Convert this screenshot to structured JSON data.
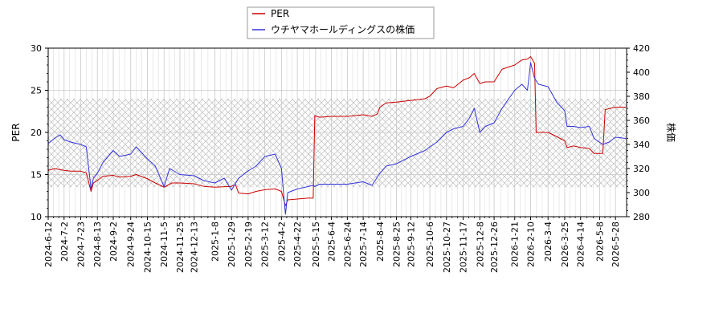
{
  "chart_data": {
    "type": "line",
    "ylabel_left": "PER",
    "ylabel_right": "株価",
    "ylim_left": [
      10,
      30
    ],
    "ylim_right": [
      280,
      420
    ],
    "yticks_left": [
      10,
      15,
      20,
      25,
      30
    ],
    "yticks_right": [
      280,
      300,
      320,
      340,
      360,
      380,
      400,
      420
    ],
    "xlim": [
      "2024-06-12",
      "2026-06-11"
    ],
    "x_ticks": [
      "2024-6-12",
      "2024-7-2",
      "2024-7-23",
      "2024-8-13",
      "2024-9-2",
      "2024-9-24",
      "2024-10-15",
      "2024-11-5",
      "2024-11-25",
      "2024-12-13",
      "2025-1-8",
      "2025-1-29",
      "2025-2-19",
      "2025-3-12",
      "2025-4-2",
      "2025-4-22",
      "2025-5-15",
      "2025-6-4",
      "2025-6-24",
      "2025-7-14",
      "2025-8-4",
      "2025-8-25",
      "2025-9-12",
      "2025-10-6",
      "2025-10-27",
      "2025-11-17",
      "2025-12-8",
      "2025-12-26",
      "2026-1-21",
      "2026-2-10",
      "2026-3-4",
      "2026-3-25",
      "2026-4-14",
      "2026-5-8",
      "2026-5-28"
    ],
    "grid": true,
    "legend_position": "top-center",
    "shaded_band_left": [
      13.5,
      24
    ],
    "series": [
      {
        "name": "PER",
        "axis": "left",
        "color": "#cc0000",
        "points": [
          [
            "2024-06-12",
            15.5
          ],
          [
            "2024-06-20",
            15.7
          ],
          [
            "2024-07-02",
            15.5
          ],
          [
            "2024-07-10",
            15.4
          ],
          [
            "2024-07-23",
            15.4
          ],
          [
            "2024-07-30",
            15.2
          ],
          [
            "2024-08-05",
            13.0
          ],
          [
            "2024-08-08",
            14.0
          ],
          [
            "2024-08-13",
            14.3
          ],
          [
            "2024-08-20",
            14.8
          ],
          [
            "2024-09-02",
            14.9
          ],
          [
            "2024-09-10",
            14.7
          ],
          [
            "2024-09-24",
            14.8
          ],
          [
            "2024-10-01",
            15.0
          ],
          [
            "2024-10-15",
            14.5
          ],
          [
            "2024-10-25",
            14.0
          ],
          [
            "2024-11-05",
            13.5
          ],
          [
            "2024-11-15",
            14.0
          ],
          [
            "2024-11-25",
            14.0
          ],
          [
            "2024-12-13",
            13.9
          ],
          [
            "2024-12-25",
            13.6
          ],
          [
            "2025-01-08",
            13.5
          ],
          [
            "2025-01-29",
            13.6
          ],
          [
            "2025-02-03",
            13.8
          ],
          [
            "2025-02-07",
            12.8
          ],
          [
            "2025-02-19",
            12.7
          ],
          [
            "2025-03-01",
            13.0
          ],
          [
            "2025-03-12",
            13.2
          ],
          [
            "2025-03-25",
            13.3
          ],
          [
            "2025-04-02",
            13.0
          ],
          [
            "2025-04-07",
            11.3
          ],
          [
            "2025-04-10",
            12.0
          ],
          [
            "2025-04-22",
            12.1
          ],
          [
            "2025-05-05",
            12.2
          ],
          [
            "2025-05-12",
            12.2
          ],
          [
            "2025-05-14",
            22.0
          ],
          [
            "2025-05-20",
            21.8
          ],
          [
            "2025-06-04",
            21.9
          ],
          [
            "2025-06-24",
            21.9
          ],
          [
            "2025-07-14",
            22.1
          ],
          [
            "2025-07-25",
            21.9
          ],
          [
            "2025-08-01",
            22.2
          ],
          [
            "2025-08-04",
            23.0
          ],
          [
            "2025-08-12",
            23.5
          ],
          [
            "2025-08-25",
            23.6
          ],
          [
            "2025-09-12",
            23.8
          ],
          [
            "2025-09-30",
            24.0
          ],
          [
            "2025-10-06",
            24.3
          ],
          [
            "2025-10-15",
            25.2
          ],
          [
            "2025-10-27",
            25.5
          ],
          [
            "2025-11-05",
            25.3
          ],
          [
            "2025-11-17",
            26.2
          ],
          [
            "2025-11-25",
            26.5
          ],
          [
            "2025-12-01",
            27.0
          ],
          [
            "2025-12-08",
            25.8
          ],
          [
            "2025-12-15",
            26.0
          ],
          [
            "2025-12-26",
            26.0
          ],
          [
            "2026-01-05",
            27.5
          ],
          [
            "2026-01-21",
            28.0
          ],
          [
            "2026-01-30",
            28.6
          ],
          [
            "2026-02-06",
            28.7
          ],
          [
            "2026-02-10",
            29.0
          ],
          [
            "2026-02-15",
            28.2
          ],
          [
            "2026-02-17",
            20.0
          ],
          [
            "2026-03-04",
            20.0
          ],
          [
            "2026-03-15",
            19.5
          ],
          [
            "2026-03-25",
            19.0
          ],
          [
            "2026-03-28",
            18.2
          ],
          [
            "2026-04-05",
            18.4
          ],
          [
            "2026-04-14",
            18.2
          ],
          [
            "2026-04-25",
            18.1
          ],
          [
            "2026-05-01",
            17.5
          ],
          [
            "2026-05-12",
            17.5
          ],
          [
            "2026-05-15",
            22.7
          ],
          [
            "2026-05-28",
            23.0
          ],
          [
            "2026-06-10",
            23.0
          ]
        ]
      },
      {
        "name": "ウチヤマホールディングスの株価",
        "axis": "right",
        "color": "#3333dd",
        "points": [
          [
            "2024-06-12",
            341
          ],
          [
            "2024-06-20",
            345
          ],
          [
            "2024-06-27",
            348
          ],
          [
            "2024-07-02",
            344
          ],
          [
            "2024-07-10",
            342
          ],
          [
            "2024-07-23",
            340
          ],
          [
            "2024-07-30",
            338
          ],
          [
            "2024-08-05",
            303
          ],
          [
            "2024-08-08",
            312
          ],
          [
            "2024-08-13",
            316
          ],
          [
            "2024-08-20",
            325
          ],
          [
            "2024-09-02",
            335
          ],
          [
            "2024-09-10",
            330
          ],
          [
            "2024-09-24",
            332
          ],
          [
            "2024-10-01",
            338
          ],
          [
            "2024-10-15",
            328
          ],
          [
            "2024-10-25",
            322
          ],
          [
            "2024-11-05",
            305
          ],
          [
            "2024-11-12",
            320
          ],
          [
            "2024-11-25",
            315
          ],
          [
            "2024-12-13",
            314
          ],
          [
            "2024-12-25",
            310
          ],
          [
            "2025-01-08",
            308
          ],
          [
            "2025-01-20",
            312
          ],
          [
            "2025-01-29",
            302
          ],
          [
            "2025-02-07",
            312
          ],
          [
            "2025-02-19",
            318
          ],
          [
            "2025-03-01",
            322
          ],
          [
            "2025-03-12",
            330
          ],
          [
            "2025-03-25",
            332
          ],
          [
            "2025-04-02",
            320
          ],
          [
            "2025-04-07",
            282
          ],
          [
            "2025-04-10",
            300
          ],
          [
            "2025-04-22",
            303
          ],
          [
            "2025-05-05",
            305
          ],
          [
            "2025-05-12",
            306
          ],
          [
            "2025-05-14",
            305
          ],
          [
            "2025-05-20",
            307
          ],
          [
            "2025-06-04",
            307
          ],
          [
            "2025-06-24",
            307
          ],
          [
            "2025-07-14",
            309
          ],
          [
            "2025-07-25",
            306
          ],
          [
            "2025-08-04",
            316
          ],
          [
            "2025-08-12",
            322
          ],
          [
            "2025-08-25",
            324
          ],
          [
            "2025-09-12",
            330
          ],
          [
            "2025-09-30",
            335
          ],
          [
            "2025-10-06",
            338
          ],
          [
            "2025-10-15",
            342
          ],
          [
            "2025-10-27",
            350
          ],
          [
            "2025-11-05",
            353
          ],
          [
            "2025-11-17",
            355
          ],
          [
            "2025-11-25",
            362
          ],
          [
            "2025-12-01",
            370
          ],
          [
            "2025-12-08",
            350
          ],
          [
            "2025-12-15",
            355
          ],
          [
            "2025-12-26",
            358
          ],
          [
            "2026-01-05",
            370
          ],
          [
            "2026-01-21",
            385
          ],
          [
            "2026-01-30",
            390
          ],
          [
            "2026-02-06",
            385
          ],
          [
            "2026-02-10",
            408
          ],
          [
            "2026-02-15",
            395
          ],
          [
            "2026-02-20",
            390
          ],
          [
            "2026-03-04",
            388
          ],
          [
            "2026-03-15",
            375
          ],
          [
            "2026-03-25",
            368
          ],
          [
            "2026-03-28",
            355
          ],
          [
            "2026-04-05",
            355
          ],
          [
            "2026-04-14",
            354
          ],
          [
            "2026-04-25",
            355
          ],
          [
            "2026-05-01",
            345
          ],
          [
            "2026-05-12",
            340
          ],
          [
            "2026-05-20",
            342
          ],
          [
            "2026-05-28",
            346
          ],
          [
            "2026-06-10",
            345
          ]
        ]
      }
    ]
  }
}
